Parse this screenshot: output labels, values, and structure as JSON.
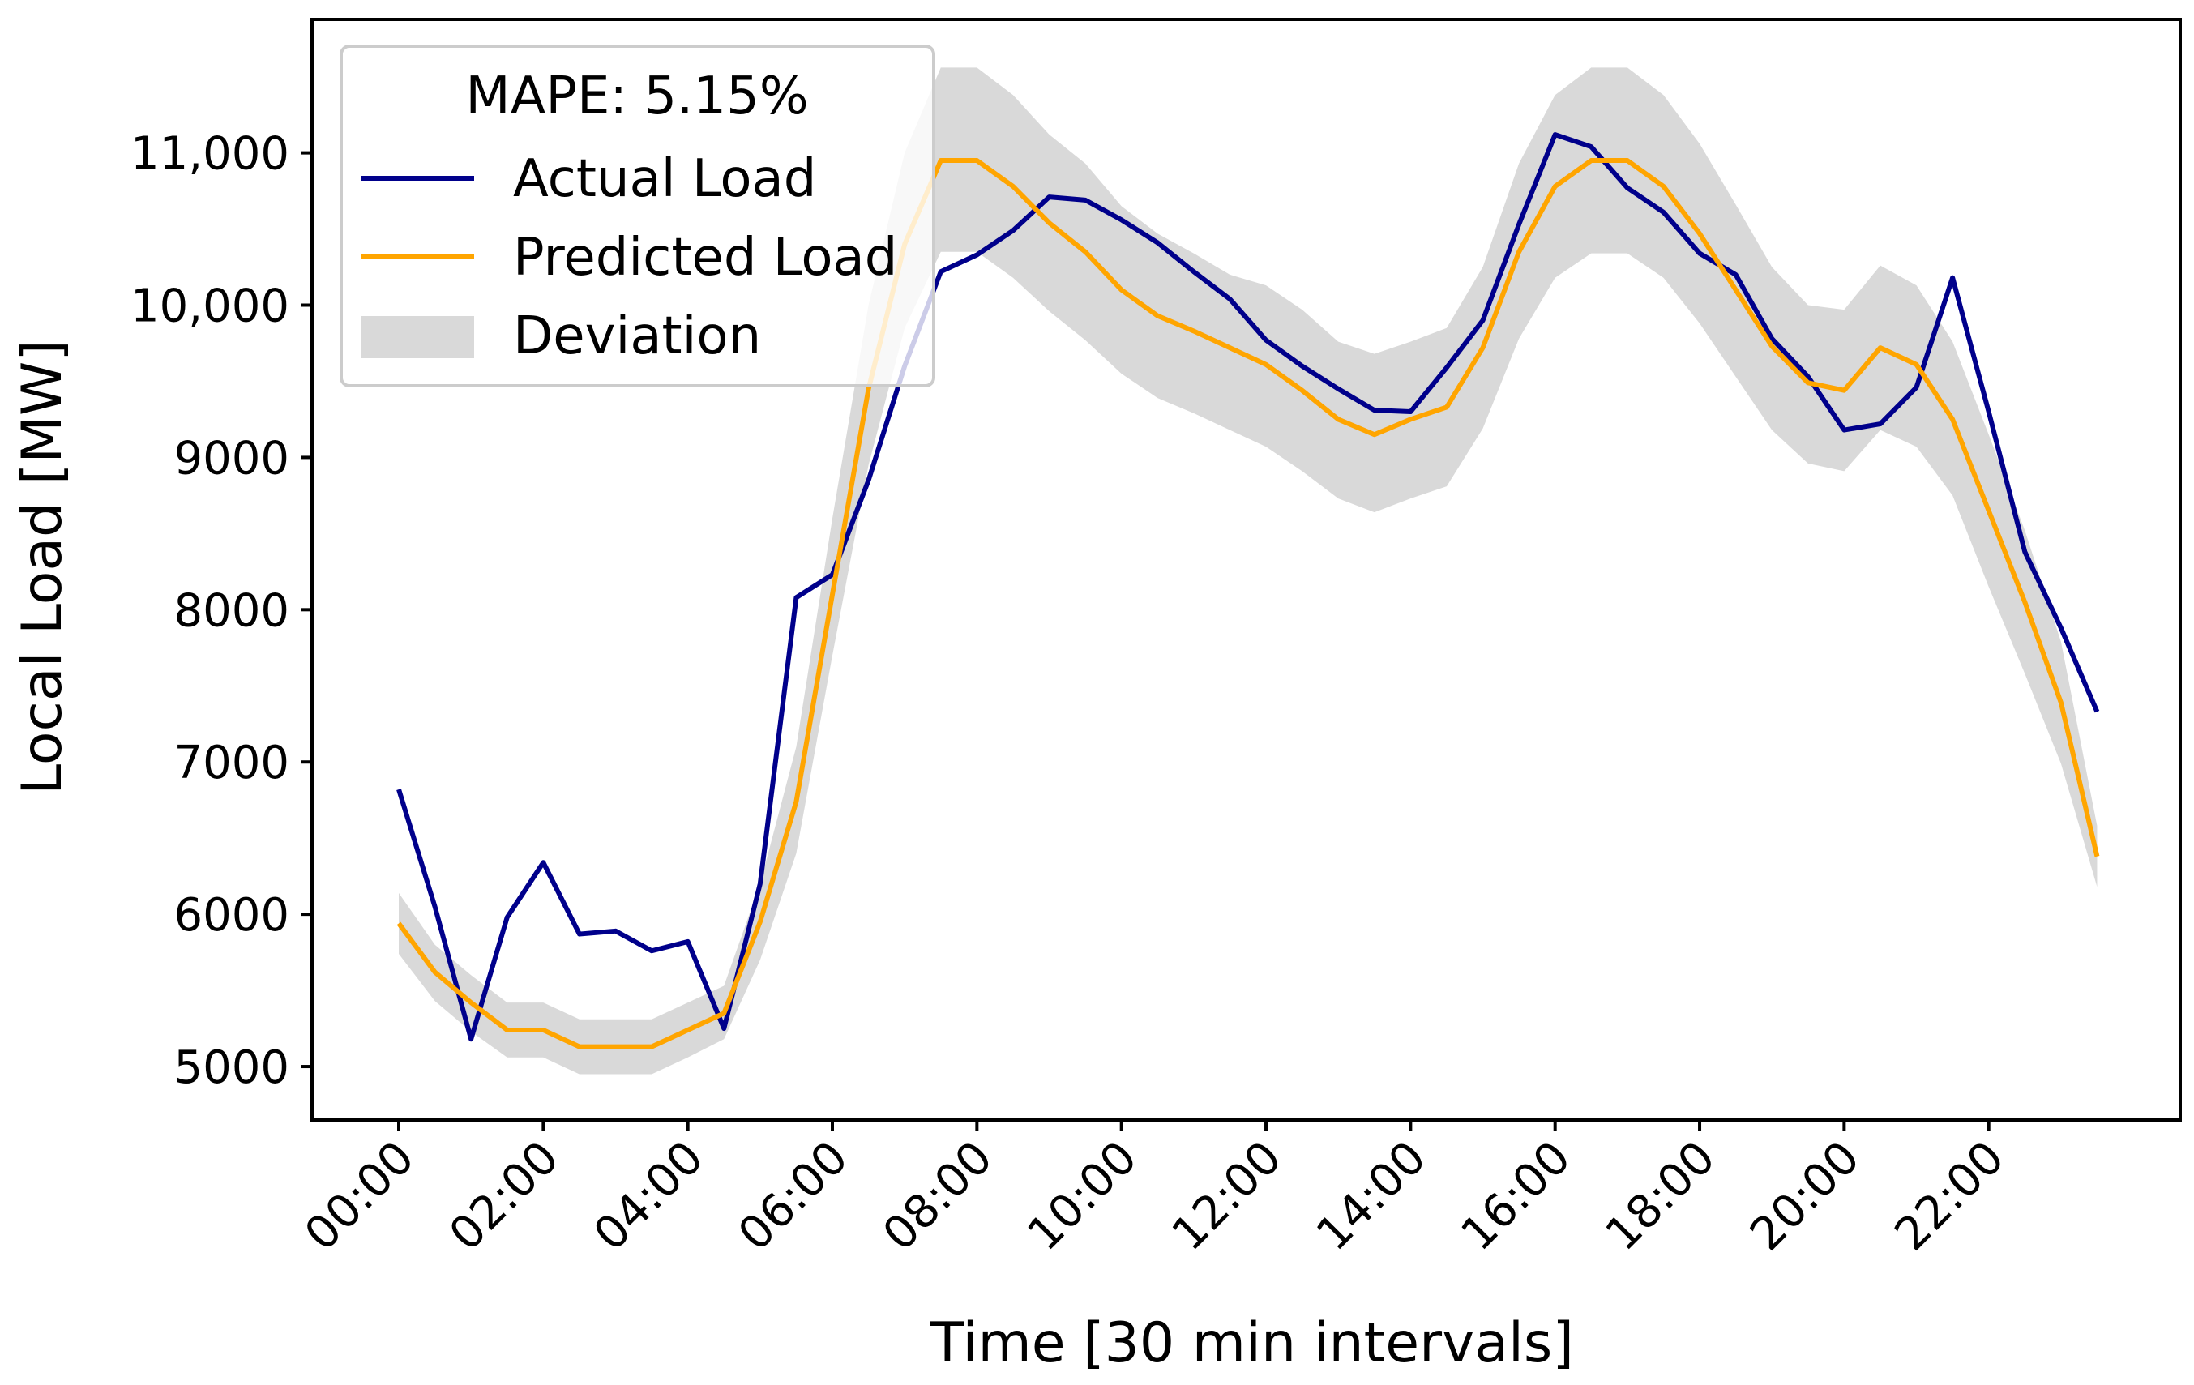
{
  "chart_data": {
    "type": "line",
    "title": "",
    "xlabel": "Time [30 min intervals]",
    "ylabel": "Local Load [MW]",
    "ylim": [
      4649,
      11876
    ],
    "xlim": [
      -2.4,
      49.3
    ],
    "grid": false,
    "legend_placement": "top-left",
    "legend_title": "MAPE: 5.15%",
    "x_tick_labels": [
      "00:00",
      "02:00",
      "04:00",
      "06:00",
      "08:00",
      "10:00",
      "12:00",
      "14:00",
      "16:00",
      "18:00",
      "20:00",
      "22:00"
    ],
    "y_ticks": [
      5000,
      6000,
      7000,
      8000,
      9000,
      10000,
      11000
    ],
    "y_tick_labels": [
      "5000",
      "6000",
      "7000",
      "8000",
      "9000",
      "10,000",
      "11,000"
    ],
    "colors": {
      "actual": "#00008b",
      "predicted": "#ffa500",
      "deviation": "#d9d9d9"
    },
    "series": [
      {
        "name": "Actual Load",
        "values": [
          6820,
          6050,
          5180,
          5980,
          6340,
          5870,
          5890,
          5760,
          5820,
          5250,
          6200,
          8080,
          8230,
          8850,
          9600,
          10220,
          10330,
          10490,
          10710,
          10690,
          10560,
          10410,
          10220,
          10040,
          9770,
          9600,
          9450,
          9310,
          9300,
          9590,
          9900,
          10530,
          11120,
          11040,
          10770,
          10610,
          10340,
          10200,
          9780,
          9530,
          9180,
          9220,
          9460,
          10180,
          9300,
          8380,
          7880,
          7330
        ]
      },
      {
        "name": "Predicted Load",
        "values": [
          5940,
          5620,
          5420,
          5240,
          5240,
          5130,
          5130,
          5130,
          5240,
          5350,
          5950,
          6740,
          8100,
          9450,
          10400,
          10950,
          10950,
          10780,
          10540,
          10350,
          10100,
          9930,
          9830,
          9720,
          9610,
          9440,
          9250,
          9150,
          9250,
          9330,
          9720,
          10350,
          10780,
          10950,
          10950,
          10780,
          10470,
          10100,
          9730,
          9490,
          9440,
          9720,
          9610,
          9250,
          8650,
          8050,
          7390,
          6380
        ]
      }
    ],
    "deviation": {
      "name": "Deviation",
      "upper": [
        6140,
        5800,
        5600,
        5420,
        5420,
        5310,
        5310,
        5310,
        5420,
        5530,
        6200,
        7100,
        8600,
        10000,
        11000,
        11560,
        11560,
        11380,
        11120,
        10930,
        10650,
        10470,
        10340,
        10200,
        10130,
        9970,
        9760,
        9680,
        9760,
        9850,
        10250,
        10930,
        11380,
        11560,
        11560,
        11380,
        11060,
        10660,
        10250,
        10000,
        9970,
        10260,
        10130,
        9760,
        9150,
        8520,
        7790,
        6580
      ],
      "lower": [
        5740,
        5430,
        5230,
        5060,
        5060,
        4950,
        4950,
        4950,
        5060,
        5180,
        5700,
        6400,
        7700,
        8950,
        9850,
        10350,
        10350,
        10180,
        9960,
        9770,
        9550,
        9390,
        9290,
        9180,
        9070,
        8910,
        8730,
        8640,
        8730,
        8810,
        9190,
        9780,
        10180,
        10340,
        10340,
        10180,
        9880,
        9530,
        9180,
        8960,
        8910,
        9180,
        9070,
        8750,
        8150,
        7580,
        6990,
        6180
      ]
    }
  }
}
